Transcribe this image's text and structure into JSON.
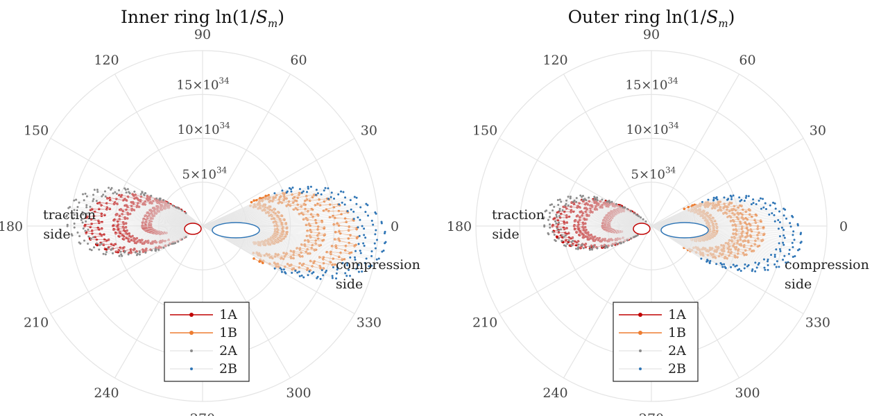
{
  "chart_data": [
    {
      "type": "polar-scatter",
      "title": "Inner ring ln(1/S_m)",
      "title_parts": {
        "prefix": "Inner ring ln(1/",
        "var": "S",
        "sub": "m",
        "suffix": ")"
      },
      "angle_unit": "degrees",
      "angle_ticks": [
        "0",
        "30",
        "60",
        "90",
        "120",
        "150",
        "180",
        "210",
        "240",
        "270",
        "300",
        "330"
      ],
      "radial_ticks": [
        "5×10^34",
        "10×10^34",
        "15×10^34"
      ],
      "radial_tick_parts": [
        {
          "m": "5×10",
          "e": "34"
        },
        {
          "m": "10×10",
          "e": "34"
        },
        {
          "m": "15×10",
          "e": "34"
        }
      ],
      "rlim": [
        0,
        2e+35
      ],
      "grid": true,
      "legend": {
        "placement": "bottom",
        "entries": [
          "1A",
          "1B",
          "2A",
          "2B"
        ]
      },
      "annotations": [
        {
          "text": [
            "traction",
            "side"
          ],
          "theta": 174
        },
        {
          "text": [
            "compression",
            "side"
          ],
          "theta": -12
        }
      ],
      "series": [
        {
          "name": "1A",
          "color": "#c00000",
          "marker": "dot-line",
          "lobes": [
            {
              "dir": 180,
              "len": 6.4e+34,
              "width": 1.2e+34,
              "shift": -10
            },
            {
              "dir": 180,
              "len": 9.5e+34,
              "width": 3.2e+34,
              "shift": -6
            },
            {
              "dir": 180,
              "len": 1.25e+35,
              "width": 5.2e+34,
              "shift": -3
            }
          ]
        },
        {
          "name": "1B",
          "color": "#ed7d31",
          "marker": "dot-line",
          "lobes": [
            {
              "dir": -4,
              "len": 9e+34,
              "width": 1.8e+34,
              "shift": 6
            },
            {
              "dir": -4,
              "len": 1.3e+35,
              "width": 4.2e+34,
              "shift": 3
            },
            {
              "dir": -4,
              "len": 1.65e+35,
              "width": 5.8e+34,
              "shift": 1
            }
          ]
        },
        {
          "name": "2A",
          "color": "#8c8c8c",
          "marker": "dot",
          "lobes": [
            {
              "dir": 176,
              "len": 1.45e+35,
              "width": 6.2e+34,
              "shift": 2
            }
          ]
        },
        {
          "name": "2B",
          "color": "#2e75b6",
          "marker": "dot",
          "lobes": [
            {
              "dir": -5,
              "len": 1.95e+35,
              "width": 6.4e+34,
              "shift": 2
            }
          ]
        }
      ]
    },
    {
      "type": "polar-scatter",
      "title": "Outer ring ln(1/S_m)",
      "title_parts": {
        "prefix": "Outer ring ln(1/",
        "var": "S",
        "sub": "m",
        "suffix": ")"
      },
      "angle_unit": "degrees",
      "angle_ticks": [
        "0",
        "30",
        "60",
        "90",
        "120",
        "150",
        "180",
        "210",
        "240",
        "270",
        "300",
        "330"
      ],
      "radial_ticks": [
        "5×10^34",
        "10×10^34",
        "15×10^34"
      ],
      "radial_tick_parts": [
        {
          "m": "5×10",
          "e": "34"
        },
        {
          "m": "10×10",
          "e": "34"
        },
        {
          "m": "15×10",
          "e": "34"
        }
      ],
      "rlim": [
        0,
        2e+35
      ],
      "grid": true,
      "legend": {
        "placement": "bottom",
        "entries": [
          "1A",
          "1B",
          "2A",
          "2B"
        ]
      },
      "annotations": [
        {
          "text": [
            "traction",
            "side"
          ],
          "theta": 174
        },
        {
          "text": [
            "compression",
            "side"
          ],
          "theta": -12
        }
      ],
      "series": [
        {
          "name": "1A",
          "color": "#c00000",
          "marker": "dot-line",
          "lobes": [
            {
              "dir": 180,
              "len": 5.2e+34,
              "width": 1e+34,
              "shift": -10
            },
            {
              "dir": 180,
              "len": 8.2e+34,
              "width": 2.8e+34,
              "shift": -6
            },
            {
              "dir": 180,
              "len": 1.05e+35,
              "width": 4.4e+34,
              "shift": -3
            }
          ]
        },
        {
          "name": "1B",
          "color": "#ed7d31",
          "marker": "dot-line",
          "lobes": [
            {
              "dir": -4,
              "len": 7e+34,
              "width": 1.4e+34,
              "shift": 6
            },
            {
              "dir": -4,
              "len": 1.02e+35,
              "width": 3.2e+34,
              "shift": 3
            },
            {
              "dir": -4,
              "len": 1.2e+35,
              "width": 4.4e+34,
              "shift": 1
            }
          ]
        },
        {
          "name": "2A",
          "color": "#8c8c8c",
          "marker": "dot",
          "lobes": [
            {
              "dir": 176,
              "len": 1.15e+35,
              "width": 5.2e+34,
              "shift": 2
            }
          ]
        },
        {
          "name": "2B",
          "color": "#2e75b6",
          "marker": "dot",
          "lobes": [
            {
              "dir": -6,
              "len": 1.6e+35,
              "width": 5.6e+34,
              "shift": 2
            }
          ]
        }
      ]
    }
  ]
}
